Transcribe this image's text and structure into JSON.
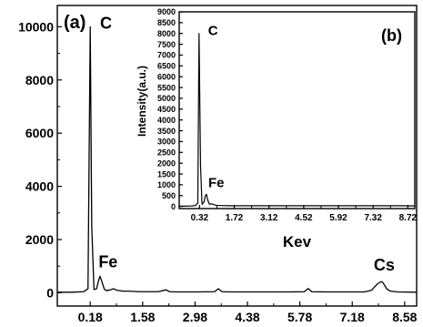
{
  "chart_data": [
    {
      "type": "line",
      "panel_label": "(a)",
      "xlabel": "",
      "ylabel": "",
      "xlim": [
        -0.7,
        8.9
      ],
      "ylim": [
        -500,
        10800
      ],
      "x_ticks": [
        0.18,
        1.58,
        2.98,
        4.38,
        5.78,
        7.18,
        8.58
      ],
      "x_tick_labels": [
        "0.18",
        "1.58",
        "2.98",
        "4.38",
        "5.78",
        "7.18",
        "8.58"
      ],
      "y_ticks": [
        0,
        2000,
        4000,
        6000,
        8000,
        10000
      ],
      "y_tick_labels": [
        "0",
        "2000",
        "4000",
        "6000",
        "8000",
        "10000"
      ],
      "series": [
        {
          "color": "#000000",
          "x": [
            -0.7,
            -0.3,
            0.0,
            0.12,
            0.18,
            0.22,
            0.28,
            0.35,
            0.4,
            0.44,
            0.5,
            0.56,
            0.62,
            0.72,
            0.8,
            0.9,
            1.05,
            1.2,
            1.5,
            2.0,
            2.2,
            2.3,
            2.5,
            3.0,
            3.5,
            3.6,
            3.7,
            4.0,
            4.5,
            5.0,
            5.5,
            5.9,
            6.0,
            6.1,
            6.5,
            7.0,
            7.5,
            7.6,
            7.7,
            7.85,
            7.95,
            8.0,
            8.1,
            8.2,
            8.4,
            8.9
          ],
          "y": [
            20,
            20,
            40,
            150,
            10000,
            2500,
            120,
            150,
            450,
            620,
            380,
            120,
            80,
            110,
            150,
            90,
            60,
            60,
            40,
            40,
            110,
            40,
            30,
            30,
            40,
            150,
            40,
            30,
            30,
            30,
            30,
            40,
            160,
            40,
            30,
            30,
            30,
            60,
            100,
            330,
            420,
            380,
            150,
            60,
            30,
            20
          ]
        }
      ],
      "annotations": [
        {
          "text": "C",
          "x": 0.2,
          "y": 10000
        },
        {
          "text": "Fe",
          "x": 0.45,
          "y": 620
        },
        {
          "text": "Cs",
          "x": 7.95,
          "y": 420
        }
      ]
    },
    {
      "type": "line",
      "panel_label": "(b)",
      "xlabel": "Kev",
      "ylabel": "Intensity(a.u.)",
      "xlim": [
        -0.5,
        9.0
      ],
      "ylim": [
        -100,
        9000
      ],
      "x_ticks": [
        0.32,
        1.72,
        3.12,
        4.52,
        5.92,
        7.32,
        8.72
      ],
      "x_tick_labels": [
        "0.32",
        "1.72",
        "3.12",
        "4.52",
        "5.92",
        "7.32",
        "8.72"
      ],
      "y_ticks": [
        0,
        500,
        1000,
        1500,
        2000,
        2500,
        3000,
        3500,
        4000,
        4500,
        5000,
        5500,
        6000,
        6500,
        7000,
        7500,
        8000,
        8500,
        9000
      ],
      "y_tick_labels": [
        "0",
        "500",
        "1000",
        "1500",
        "2000",
        "2500",
        "3000",
        "3500",
        "4000",
        "4500",
        "5000",
        "5500",
        "6000",
        "6500",
        "7000",
        "7500",
        "8000",
        "8500",
        "9000"
      ],
      "series": [
        {
          "color": "#000000",
          "x": [
            -0.5,
            0.0,
            0.15,
            0.25,
            0.3,
            0.36,
            0.42,
            0.5,
            0.55,
            0.6,
            0.65,
            0.72,
            0.8,
            0.9,
            1.0,
            1.2,
            1.5,
            2.0,
            2.5,
            3.0,
            3.5,
            4.0,
            4.5,
            5.0,
            5.5,
            6.0,
            6.5,
            7.0,
            7.5,
            8.0,
            8.5,
            9.0
          ],
          "y": [
            10,
            20,
            40,
            150,
            8000,
            1900,
            100,
            200,
            480,
            560,
            300,
            100,
            120,
            80,
            50,
            40,
            30,
            30,
            30,
            30,
            30,
            30,
            30,
            30,
            30,
            30,
            30,
            30,
            30,
            30,
            30,
            20
          ]
        }
      ],
      "annotations": [
        {
          "text": "C",
          "x": 0.3,
          "y": 8000
        },
        {
          "text": "Fe",
          "x": 0.6,
          "y": 560
        }
      ]
    }
  ]
}
